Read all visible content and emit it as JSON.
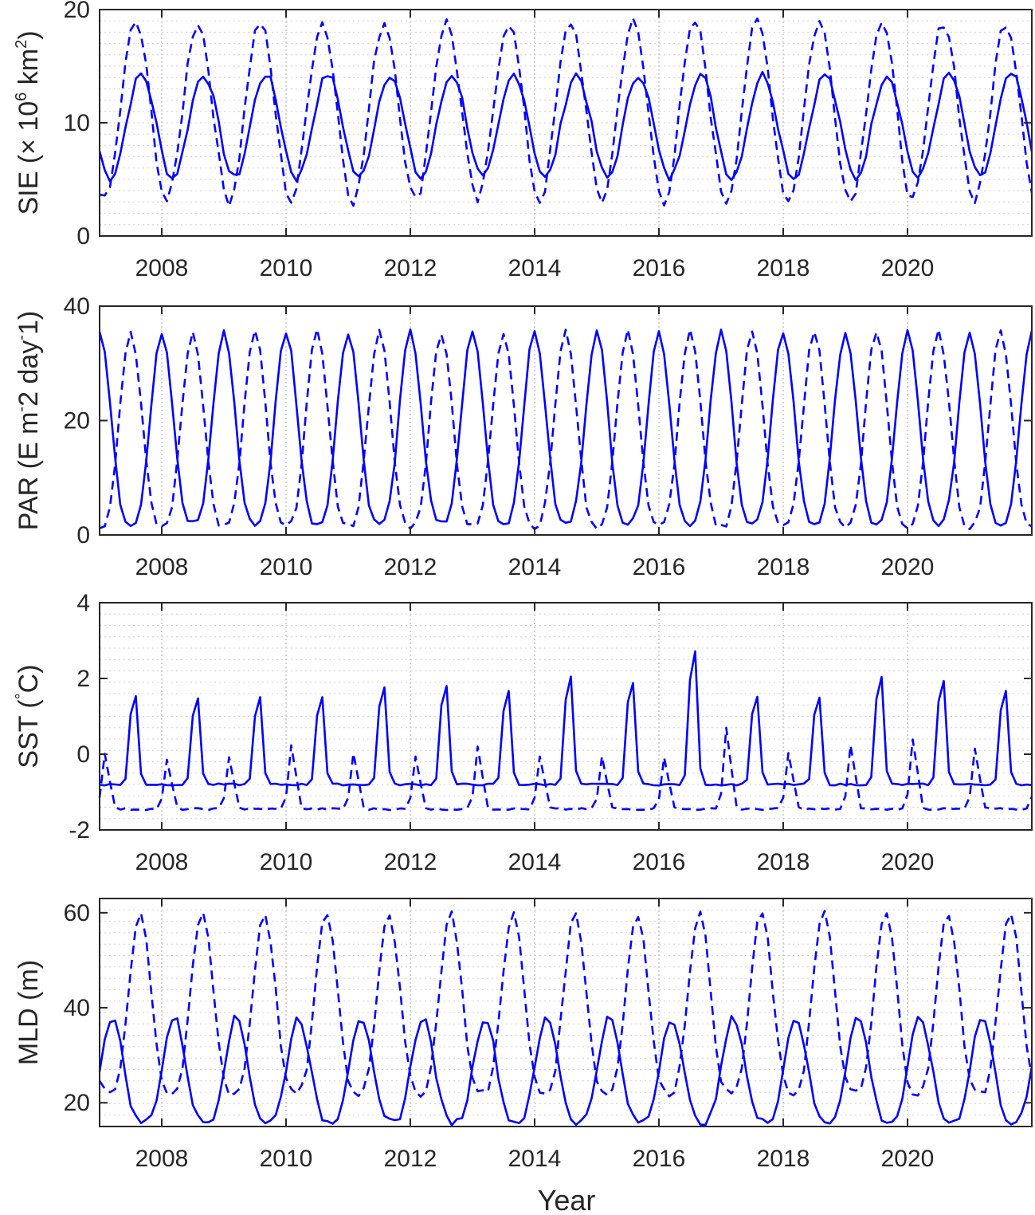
{
  "colors": {
    "series": "#0000ff",
    "axis": "#262626",
    "grid": "#b8b8b8"
  },
  "chart_data": [
    {
      "type": "line",
      "ylabel": {
        "main": "SIE (× 10",
        "sup1": "6",
        "mid": " km",
        "sup2": "2",
        "end": ")"
      },
      "xlabel": "",
      "ylim": [
        0,
        20
      ],
      "yticks": [
        0,
        10,
        20
      ],
      "xlim": [
        2007.0,
        2022.0
      ],
      "xticks": [
        2008,
        2010,
        2012,
        2014,
        2016,
        2018,
        2020
      ],
      "grid": true,
      "series": [
        {
          "style": "solid",
          "amplitude": 4.6,
          "offset": 9.7,
          "peak_phase": 0.67,
          "noise": 0.35
        },
        {
          "style": "dashed",
          "amplitude": 7.9,
          "offset": 11.0,
          "peak_phase": 0.58,
          "noise": 0.5
        }
      ]
    },
    {
      "type": "line",
      "ylabel": {
        "main": "PAR (E m",
        "sup1": "-",
        "mid": "2 day",
        "sup2": "-",
        "end": "1)"
      },
      "xlabel": "",
      "ylim": [
        0,
        40
      ],
      "yticks": [
        0,
        20,
        40
      ],
      "xlim": [
        2007.0,
        2022.0
      ],
      "xticks": [
        2008,
        2010,
        2012,
        2014,
        2016,
        2018,
        2020
      ],
      "grid": false,
      "series": [
        {
          "style": "solid",
          "min": 2.0,
          "max": 35.5,
          "peak_phase": 0.0,
          "noise": 1.0
        },
        {
          "style": "dashed",
          "min": 1.5,
          "max": 35.5,
          "peak_phase": 0.5,
          "noise": 1.0
        }
      ]
    },
    {
      "type": "line",
      "ylabel": {
        "main": "SST (",
        "sup1": "°",
        "mid": "C)",
        "sup2": "",
        "end": ""
      },
      "xlabel": "",
      "ylim": [
        -2,
        4
      ],
      "yticks": [
        -2,
        0,
        2,
        4
      ],
      "xlim": [
        2007.0,
        2022.0
      ],
      "xticks": [
        2008,
        2010,
        2012,
        2014,
        2016,
        2018,
        2020
      ],
      "grid": true,
      "series": [
        {
          "style": "solid",
          "base": -0.8,
          "peaks": [
            2.0,
            1.95,
            1.95,
            1.98,
            2.3,
            2.35,
            2.15,
            2.6,
            2.45,
            3.4,
            2.0,
            1.95,
            2.6,
            2.5,
            2.15
          ],
          "peak_phase": 0.55
        },
        {
          "style": "dashed",
          "base": -1.45,
          "peaks": [
            0.1,
            -0.1,
            0.0,
            0.3,
            0.1,
            0.0,
            0.3,
            0.0,
            0.0,
            0.0,
            0.8,
            0.1,
            0.3,
            0.5,
            0.2
          ],
          "peak_phase": 0.1
        }
      ]
    },
    {
      "type": "line",
      "ylabel": {
        "main": "MLD (m)",
        "sup1": "",
        "mid": "",
        "sup2": "",
        "end": ""
      },
      "xlabel": "Year",
      "ylim": [
        15,
        63
      ],
      "yticks": [
        20,
        40,
        60
      ],
      "xlim": [
        2007.0,
        2022.0
      ],
      "xticks": [
        2008,
        2010,
        2012,
        2014,
        2016,
        2018,
        2020
      ],
      "grid": true,
      "series": [
        {
          "style": "solid",
          "min": 16.0,
          "max": 38.0,
          "peak_phase": 0.2,
          "noise": 1.5
        },
        {
          "style": "dashed",
          "min": 22.0,
          "max": 60.0,
          "peak_phase": 0.65,
          "noise": 1.5
        }
      ]
    }
  ]
}
